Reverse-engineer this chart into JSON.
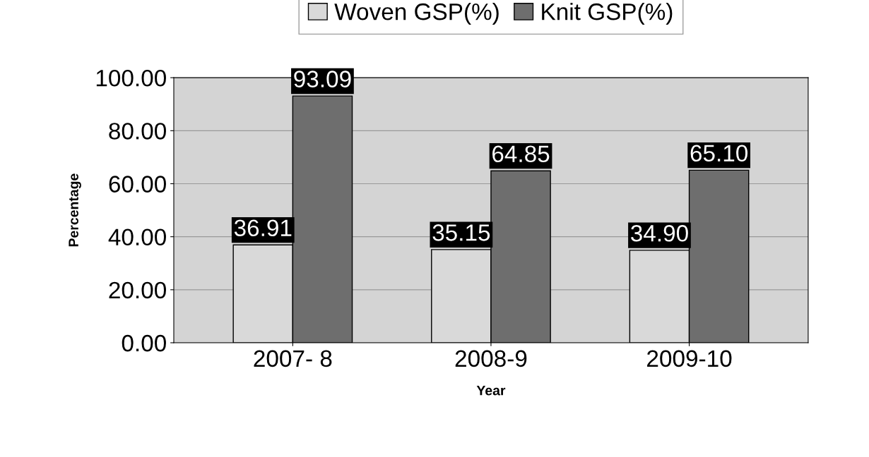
{
  "chart_data": {
    "type": "bar",
    "xlabel": "Year",
    "ylabel": "Percentage",
    "categories": [
      "2007- 8",
      "2008-9",
      "2009-10"
    ],
    "series": [
      {
        "name": "Woven GSP(%)",
        "color": "#d9d9d9",
        "values": [
          36.91,
          35.15,
          34.9
        ],
        "value_labels": [
          "36.91",
          "35.15",
          "34.90"
        ]
      },
      {
        "name": "Knit GSP(%)",
        "color": "#6e6e6e",
        "values": [
          93.09,
          64.85,
          65.1
        ],
        "value_labels": [
          "93.09",
          "64.85",
          "65.10"
        ]
      }
    ],
    "ylim": [
      0,
      100
    ],
    "yticks": [
      {
        "value": 0,
        "label": "0.00"
      },
      {
        "value": 20,
        "label": "20.00"
      },
      {
        "value": 40,
        "label": "40.00"
      },
      {
        "value": 60,
        "label": "60.00"
      },
      {
        "value": 80,
        "label": "80.00"
      },
      {
        "value": 100,
        "label": "100.00"
      }
    ],
    "grid": "y",
    "legend": "top"
  }
}
